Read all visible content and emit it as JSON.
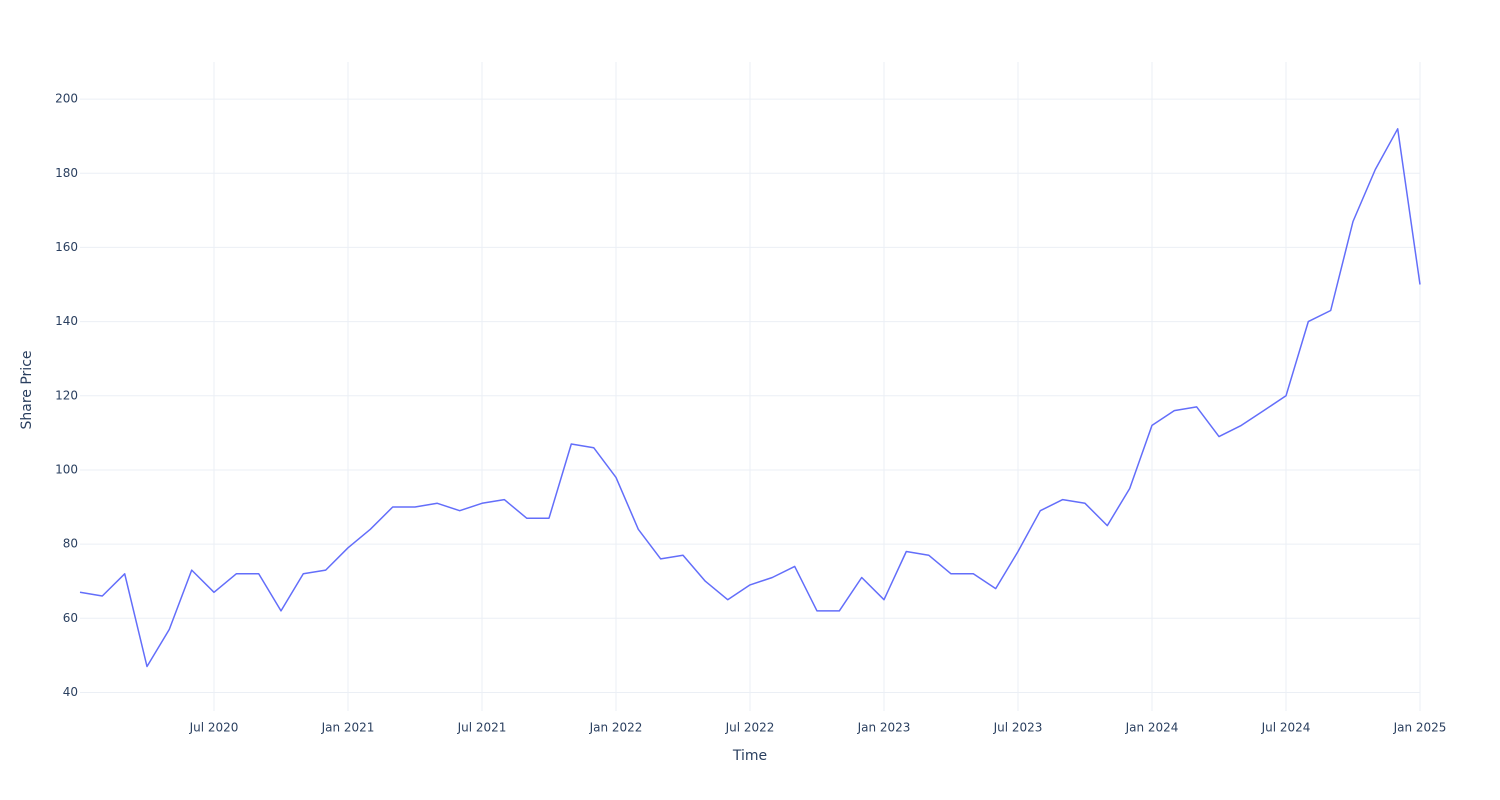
{
  "chart_data": {
    "type": "line",
    "xlabel": "Time",
    "ylabel": "Share Price",
    "x": [
      "2020-01",
      "2020-02",
      "2020-03",
      "2020-04",
      "2020-05",
      "2020-06",
      "2020-07",
      "2020-08",
      "2020-09",
      "2020-10",
      "2020-11",
      "2020-12",
      "2021-01",
      "2021-02",
      "2021-03",
      "2021-04",
      "2021-05",
      "2021-06",
      "2021-07",
      "2021-08",
      "2021-09",
      "2021-10",
      "2021-11",
      "2021-12",
      "2022-01",
      "2022-02",
      "2022-03",
      "2022-04",
      "2022-05",
      "2022-06",
      "2022-07",
      "2022-08",
      "2022-09",
      "2022-10",
      "2022-11",
      "2022-12",
      "2023-01",
      "2023-02",
      "2023-03",
      "2023-04",
      "2023-05",
      "2023-06",
      "2023-07",
      "2023-08",
      "2023-09",
      "2023-10",
      "2023-11",
      "2023-12",
      "2024-01",
      "2024-02",
      "2024-03",
      "2024-04",
      "2024-05",
      "2024-06",
      "2024-07",
      "2024-08",
      "2024-09",
      "2024-10",
      "2024-11",
      "2024-12",
      "2025-01"
    ],
    "series": [
      {
        "name": "Share Price",
        "color": "#636efa",
        "values": [
          67,
          66,
          72,
          47,
          57,
          73,
          67,
          72,
          72,
          62,
          72,
          73,
          79,
          84,
          90,
          90,
          91,
          89,
          91,
          92,
          87,
          87,
          107,
          106,
          98,
          84,
          76,
          77,
          70,
          65,
          69,
          71,
          74,
          62,
          62,
          71,
          65,
          78,
          77,
          72,
          72,
          68,
          78,
          89,
          92,
          91,
          85,
          95,
          112,
          116,
          117,
          109,
          112,
          116,
          120,
          140,
          143,
          167,
          181,
          192,
          150
        ]
      }
    ],
    "xlim": [
      "2020-01",
      "2025-01"
    ],
    "xticks": [
      {
        "value": "2020-07",
        "label": "Jul 2020"
      },
      {
        "value": "2021-01",
        "label": "Jan 2021"
      },
      {
        "value": "2021-07",
        "label": "Jul 2021"
      },
      {
        "value": "2022-01",
        "label": "Jan 2022"
      },
      {
        "value": "2022-07",
        "label": "Jul 2022"
      },
      {
        "value": "2023-01",
        "label": "Jan 2023"
      },
      {
        "value": "2023-07",
        "label": "Jul 2023"
      },
      {
        "value": "2024-01",
        "label": "Jan 2024"
      },
      {
        "value": "2024-07",
        "label": "Jul 2024"
      },
      {
        "value": "2025-01",
        "label": "Jan 2025"
      }
    ],
    "ylim": [
      35,
      210
    ],
    "yticks": [
      40,
      60,
      80,
      100,
      120,
      140,
      160,
      180,
      200
    ],
    "grid": true
  }
}
